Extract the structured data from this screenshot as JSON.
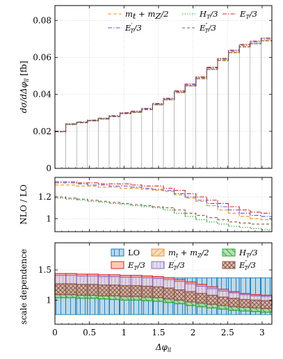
{
  "chart_data": [
    {
      "type": "line",
      "step": true,
      "ylabel": "dσ/dΔφll [fb]",
      "xlim": [
        0,
        3.1416
      ],
      "ylim": [
        0,
        0.088
      ],
      "yticks": [
        "0",
        "0.02",
        "0.04",
        "0.06",
        "0.08"
      ],
      "grid": true,
      "legend": "top",
      "bin_edges": [
        0,
        0.157,
        0.314,
        0.471,
        0.628,
        0.785,
        0.942,
        1.1,
        1.257,
        1.414,
        1.571,
        1.728,
        1.885,
        2.042,
        2.199,
        2.356,
        2.513,
        2.67,
        2.827,
        2.985,
        3.1416
      ],
      "series": [
        {
          "name": "m_t + m_Z/2",
          "color": "#f28e2b",
          "dash": "5,3",
          "values": [
            0.0199,
            0.0238,
            0.0248,
            0.0258,
            0.0268,
            0.0281,
            0.0297,
            0.0304,
            0.0319,
            0.0345,
            0.0372,
            0.0411,
            0.0447,
            0.0486,
            0.0537,
            0.0584,
            0.0628,
            0.0658,
            0.0676,
            0.0692
          ]
        },
        {
          "name": "H_T/3",
          "color": "#2ca02c",
          "dash": "1.5,2",
          "values": [
            0.0197,
            0.0236,
            0.0246,
            0.0256,
            0.0266,
            0.0279,
            0.0295,
            0.0302,
            0.0317,
            0.0343,
            0.037,
            0.0409,
            0.0445,
            0.0484,
            0.0534,
            0.0582,
            0.0625,
            0.0656,
            0.0673,
            0.0689
          ]
        },
        {
          "name": "E_T/3",
          "color": "#d62728",
          "dash": "6,2,1.5,2",
          "values": [
            0.0201,
            0.0241,
            0.0251,
            0.0261,
            0.0271,
            0.0285,
            0.0301,
            0.0309,
            0.0324,
            0.0351,
            0.0379,
            0.0419,
            0.0456,
            0.0495,
            0.0547,
            0.0594,
            0.0639,
            0.067,
            0.0688,
            0.0704
          ]
        },
        {
          "name": "E'_T/3",
          "color": "#6a5acd",
          "dash": "6,2,1.5,2",
          "values": [
            0.02,
            0.024,
            0.025,
            0.026,
            0.027,
            0.0283,
            0.0299,
            0.0307,
            0.0322,
            0.0348,
            0.0376,
            0.0415,
            0.0452,
            0.0491,
            0.0543,
            0.059,
            0.0634,
            0.0665,
            0.0683,
            0.0699
          ]
        },
        {
          "name": "E''_T/3",
          "color": "#8c564b",
          "dash": "4,3",
          "values": [
            0.0198,
            0.0237,
            0.0247,
            0.0257,
            0.0267,
            0.028,
            0.0296,
            0.0303,
            0.0318,
            0.0344,
            0.0371,
            0.041,
            0.0446,
            0.0485,
            0.0536,
            0.0583,
            0.0626,
            0.0657,
            0.0674,
            0.069
          ]
        }
      ]
    },
    {
      "type": "line",
      "step": true,
      "ylabel": "NLO / LO",
      "xlim": [
        0,
        3.1416
      ],
      "ylim": [
        0.88,
        1.38
      ],
      "yticks": [
        "1",
        "1.2"
      ],
      "grid": true,
      "bin_edges": [
        0,
        0.157,
        0.314,
        0.471,
        0.628,
        0.785,
        0.942,
        1.1,
        1.257,
        1.414,
        1.571,
        1.728,
        1.885,
        2.042,
        2.199,
        2.356,
        2.513,
        2.67,
        2.827,
        2.985,
        3.1416
      ],
      "series": [
        {
          "name": "m_t + m_Z/2",
          "color": "#f28e2b",
          "dash": "5,3",
          "values": [
            1.31,
            1.31,
            1.3,
            1.3,
            1.29,
            1.29,
            1.28,
            1.28,
            1.27,
            1.26,
            1.25,
            1.22,
            1.19,
            1.16,
            1.12,
            1.08,
            1.05,
            1.02,
            1.0,
            0.99
          ]
        },
        {
          "name": "H_T/3",
          "color": "#2ca02c",
          "dash": "1.5,2",
          "values": [
            1.19,
            1.18,
            1.17,
            1.16,
            1.15,
            1.14,
            1.13,
            1.12,
            1.11,
            1.1,
            1.08,
            1.05,
            1.02,
            0.99,
            0.97,
            0.95,
            0.93,
            0.92,
            0.91,
            0.9
          ]
        },
        {
          "name": "E_T/3",
          "color": "#d62728",
          "dash": "6,2,1.5,2",
          "values": [
            1.34,
            1.34,
            1.33,
            1.33,
            1.32,
            1.32,
            1.32,
            1.31,
            1.3,
            1.3,
            1.28,
            1.26,
            1.23,
            1.2,
            1.17,
            1.14,
            1.11,
            1.08,
            1.06,
            1.05
          ]
        },
        {
          "name": "E'_T/3",
          "color": "#6a5acd",
          "dash": "6,2,1.5,2",
          "values": [
            1.33,
            1.33,
            1.32,
            1.31,
            1.31,
            1.3,
            1.3,
            1.29,
            1.28,
            1.27,
            1.26,
            1.23,
            1.2,
            1.17,
            1.14,
            1.11,
            1.08,
            1.05,
            1.03,
            1.02
          ]
        },
        {
          "name": "E''_T/3",
          "color": "#8c564b",
          "dash": "4,3",
          "values": [
            1.2,
            1.19,
            1.18,
            1.17,
            1.16,
            1.15,
            1.14,
            1.13,
            1.12,
            1.11,
            1.1,
            1.08,
            1.05,
            1.03,
            1.01,
            0.99,
            0.97,
            0.96,
            0.95,
            0.95
          ]
        }
      ]
    },
    {
      "type": "area",
      "step": true,
      "ylabel": "scale dependence",
      "xlabel": "Δφll",
      "xlim": [
        0,
        3.1416
      ],
      "ylim": [
        0.6,
        1.95
      ],
      "yticks": [
        "1",
        "1.5"
      ],
      "xticks": [
        "0",
        "0.5",
        "1",
        "1.5",
        "2",
        "2.5",
        "3"
      ],
      "grid": true,
      "legend": "top-right",
      "bin_edges": [
        0,
        0.157,
        0.314,
        0.471,
        0.628,
        0.785,
        0.942,
        1.1,
        1.257,
        1.414,
        1.571,
        1.728,
        1.885,
        2.042,
        2.199,
        2.356,
        2.513,
        2.67,
        2.827,
        2.985,
        3.1416
      ],
      "bands": [
        {
          "name": "LO",
          "color": "#1f77b4",
          "fill": "#9ecae1",
          "hatch": "vertical",
          "low": [
            0.76,
            0.76,
            0.76,
            0.76,
            0.76,
            0.76,
            0.76,
            0.76,
            0.76,
            0.76,
            0.76,
            0.76,
            0.76,
            0.76,
            0.76,
            0.76,
            0.76,
            0.76,
            0.76,
            0.76
          ],
          "high": [
            1.37,
            1.37,
            1.37,
            1.37,
            1.37,
            1.37,
            1.37,
            1.37,
            1.37,
            1.37,
            1.37,
            1.37,
            1.37,
            1.37,
            1.37,
            1.37,
            1.37,
            1.37,
            1.37,
            1.37
          ]
        },
        {
          "name": "m_t + m_Z/2",
          "color": "#f28e2b",
          "fill": "#fdd0a2",
          "hatch": "diag",
          "low": [
            1.14,
            1.14,
            1.13,
            1.13,
            1.12,
            1.12,
            1.11,
            1.11,
            1.1,
            1.09,
            1.08,
            1.05,
            1.03,
            1.01,
            0.98,
            0.95,
            0.93,
            0.91,
            0.9,
            0.89
          ],
          "high": [
            1.38,
            1.38,
            1.37,
            1.37,
            1.36,
            1.36,
            1.35,
            1.35,
            1.34,
            1.33,
            1.31,
            1.28,
            1.25,
            1.21,
            1.17,
            1.13,
            1.1,
            1.07,
            1.05,
            1.04
          ]
        },
        {
          "name": "H_T/3",
          "color": "#2ca02c",
          "fill": "#a1d99b",
          "hatch": "diag2",
          "low": [
            1.04,
            1.04,
            1.03,
            1.03,
            1.02,
            1.01,
            1.0,
            1.0,
            0.99,
            0.98,
            0.96,
            0.94,
            0.91,
            0.89,
            0.87,
            0.85,
            0.83,
            0.82,
            0.81,
            0.8
          ],
          "high": [
            1.23,
            1.23,
            1.22,
            1.22,
            1.21,
            1.2,
            1.19,
            1.18,
            1.17,
            1.16,
            1.14,
            1.11,
            1.08,
            1.05,
            1.02,
            1.0,
            0.98,
            0.96,
            0.95,
            0.94
          ]
        },
        {
          "name": "E_T/3",
          "color": "#d62728",
          "fill": "#fcbba1",
          "hatch": "none",
          "low": [
            1.23,
            1.23,
            1.22,
            1.22,
            1.21,
            1.21,
            1.2,
            1.2,
            1.19,
            1.18,
            1.16,
            1.13,
            1.1,
            1.07,
            1.04,
            1.01,
            0.98,
            0.96,
            0.95,
            0.94
          ],
          "high": [
            1.44,
            1.44,
            1.43,
            1.43,
            1.42,
            1.42,
            1.41,
            1.41,
            1.4,
            1.39,
            1.37,
            1.34,
            1.3,
            1.26,
            1.22,
            1.18,
            1.14,
            1.11,
            1.09,
            1.08
          ]
        },
        {
          "name": "E'_T/3",
          "color": "#9467bd",
          "fill": "#dadaeb",
          "hatch": "grid",
          "low": [
            1.2,
            1.2,
            1.19,
            1.19,
            1.18,
            1.18,
            1.17,
            1.17,
            1.16,
            1.15,
            1.13,
            1.1,
            1.07,
            1.05,
            1.02,
            0.99,
            0.96,
            0.94,
            0.93,
            0.92
          ],
          "high": [
            1.41,
            1.41,
            1.4,
            1.4,
            1.39,
            1.39,
            1.38,
            1.38,
            1.37,
            1.36,
            1.34,
            1.31,
            1.27,
            1.23,
            1.19,
            1.15,
            1.12,
            1.09,
            1.07,
            1.06
          ]
        },
        {
          "name": "E''_T/3",
          "color": "#8c564b",
          "fill": "#d9b8a8",
          "hatch": "cross",
          "low": [
            1.09,
            1.09,
            1.08,
            1.08,
            1.07,
            1.07,
            1.06,
            1.06,
            1.05,
            1.04,
            1.02,
            1.0,
            0.97,
            0.95,
            0.93,
            0.91,
            0.89,
            0.88,
            0.87,
            0.86
          ],
          "high": [
            1.27,
            1.27,
            1.26,
            1.26,
            1.25,
            1.25,
            1.24,
            1.24,
            1.23,
            1.22,
            1.2,
            1.17,
            1.14,
            1.11,
            1.08,
            1.05,
            1.03,
            1.01,
            1.0,
            0.99
          ]
        }
      ]
    }
  ]
}
